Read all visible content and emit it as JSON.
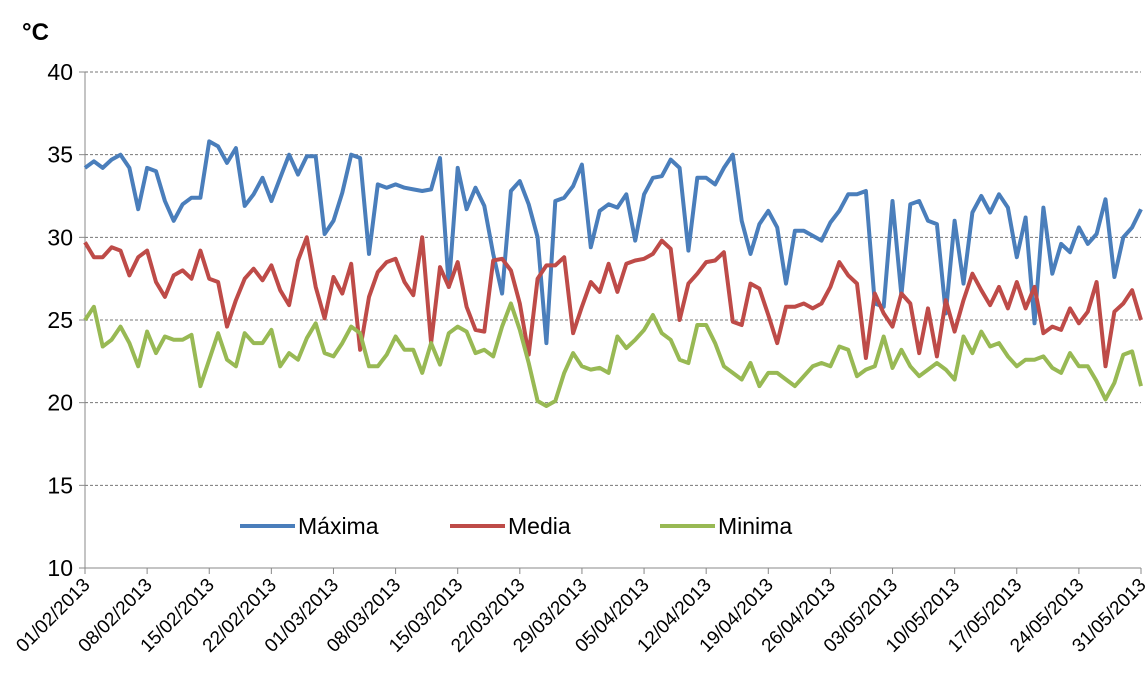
{
  "chart_data": {
    "type": "line",
    "y_label": "°C",
    "categories": [
      "01/02/2013",
      null,
      null,
      null,
      null,
      null,
      null,
      "08/02/2013",
      null,
      null,
      null,
      null,
      null,
      null,
      "15/02/2013",
      null,
      null,
      null,
      null,
      null,
      null,
      "22/02/2013",
      null,
      null,
      null,
      null,
      null,
      null,
      "01/03/2013",
      null,
      null,
      null,
      null,
      null,
      null,
      "08/03/2013",
      null,
      null,
      null,
      null,
      null,
      null,
      "15/03/2013",
      null,
      null,
      null,
      null,
      null,
      null,
      "22/03/2013",
      null,
      null,
      null,
      null,
      null,
      null,
      "29/03/2013",
      null,
      null,
      null,
      null,
      null,
      null,
      "05/04/2013",
      null,
      null,
      null,
      null,
      null,
      null,
      "12/04/2013",
      null,
      null,
      null,
      null,
      null,
      null,
      "19/04/2013",
      null,
      null,
      null,
      null,
      null,
      null,
      "26/04/2013",
      null,
      null,
      null,
      null,
      null,
      null,
      "03/05/2013",
      null,
      null,
      null,
      null,
      null,
      null,
      "10/05/2013",
      null,
      null,
      null,
      null,
      null,
      null,
      "17/05/2013",
      null,
      null,
      null,
      null,
      null,
      null,
      "24/05/2013",
      null,
      null,
      null,
      null,
      null,
      null,
      "31/05/2013"
    ],
    "series": [
      {
        "name": "Máxima",
        "color": "#4a7ebb",
        "values": [
          34.2,
          34.6,
          34.2,
          34.7,
          35.0,
          34.2,
          31.7,
          34.2,
          34.0,
          32.2,
          31.0,
          32.0,
          32.4,
          32.4,
          35.8,
          35.5,
          34.5,
          35.4,
          31.9,
          32.6,
          33.6,
          32.2,
          33.6,
          35.0,
          33.8,
          34.9,
          34.9,
          30.2,
          31.0,
          32.7,
          35.0,
          34.8,
          29.0,
          33.2,
          33.0,
          33.2,
          33.0,
          32.9,
          32.8,
          32.9,
          34.8,
          27.0,
          34.2,
          31.7,
          33.0,
          31.9,
          29.0,
          26.6,
          32.8,
          33.4,
          32.0,
          30.0,
          23.6,
          32.2,
          32.4,
          33.1,
          34.4,
          29.4,
          31.6,
          32.0,
          31.8,
          32.6,
          29.8,
          32.6,
          33.6,
          33.7,
          34.7,
          34.2,
          29.2,
          33.6,
          33.6,
          33.2,
          34.2,
          35.0,
          31.0,
          29.0,
          30.8,
          31.6,
          30.6,
          27.2,
          30.4,
          30.4,
          30.1,
          29.8,
          30.9,
          31.6,
          32.6,
          32.6,
          32.8,
          26.0,
          25.8,
          32.2,
          26.5,
          32.0,
          32.2,
          31.0,
          30.8,
          25.4,
          31.0,
          27.2,
          31.5,
          32.5,
          31.5,
          32.6,
          31.8,
          28.8,
          31.2,
          24.8,
          31.8,
          27.8,
          29.6,
          29.1,
          30.6,
          29.6,
          30.2,
          32.3,
          27.6,
          30.0,
          30.6,
          31.7
        ]
      },
      {
        "name": "Media",
        "color": "#be4b48",
        "values": [
          29.7,
          28.8,
          28.8,
          29.4,
          29.2,
          27.7,
          28.8,
          29.2,
          27.3,
          26.4,
          27.7,
          28.0,
          27.5,
          29.2,
          27.5,
          27.3,
          24.6,
          26.2,
          27.5,
          28.1,
          27.4,
          28.3,
          26.8,
          25.9,
          28.6,
          30.0,
          27.0,
          25.1,
          27.6,
          26.6,
          28.4,
          23.2,
          26.4,
          27.9,
          28.5,
          28.7,
          27.3,
          26.5,
          30.0,
          23.6,
          28.2,
          27.0,
          28.5,
          25.8,
          24.4,
          24.3,
          28.6,
          28.7,
          28.0,
          26.0,
          22.9,
          27.5,
          28.3,
          28.3,
          28.8,
          24.2,
          25.8,
          27.3,
          26.7,
          28.4,
          26.7,
          28.4,
          28.6,
          28.7,
          29.0,
          29.8,
          29.3,
          25.0,
          27.2,
          27.8,
          28.5,
          28.6,
          29.1,
          24.9,
          24.7,
          27.2,
          26.9,
          25.3,
          23.6,
          25.8,
          25.8,
          26.0,
          25.7,
          26.0,
          27.0,
          28.5,
          27.7,
          27.2,
          22.7,
          26.6,
          25.4,
          24.6,
          26.6,
          26.0,
          23.0,
          25.7,
          22.8,
          26.2,
          24.3,
          26.2,
          27.8,
          26.8,
          25.9,
          27.0,
          25.7,
          27.3,
          25.7,
          27.0,
          24.2,
          24.6,
          24.4,
          25.7,
          24.8,
          25.5,
          27.3,
          22.2,
          25.5,
          26.0,
          26.8,
          25.0
        ]
      },
      {
        "name": "Minima",
        "color": "#98b954",
        "values": [
          25.0,
          25.8,
          23.4,
          23.8,
          24.6,
          23.6,
          22.2,
          24.3,
          23.0,
          24.0,
          23.8,
          23.8,
          24.1,
          21.0,
          22.6,
          24.2,
          22.6,
          22.2,
          24.2,
          23.6,
          23.6,
          24.4,
          22.2,
          23.0,
          22.6,
          23.9,
          24.8,
          23.0,
          22.8,
          23.6,
          24.6,
          24.2,
          22.2,
          22.2,
          22.9,
          24.0,
          23.2,
          23.2,
          21.8,
          23.6,
          22.3,
          24.2,
          24.6,
          24.3,
          23.0,
          23.2,
          22.8,
          24.6,
          26.0,
          24.4,
          22.4,
          20.1,
          19.8,
          20.1,
          21.8,
          23.0,
          22.2,
          22.0,
          22.1,
          21.8,
          24.0,
          23.3,
          23.8,
          24.4,
          25.3,
          24.2,
          23.8,
          22.6,
          22.4,
          24.7,
          24.7,
          23.6,
          22.2,
          21.8,
          21.4,
          22.4,
          21.0,
          21.8,
          21.8,
          21.4,
          21.0,
          21.6,
          22.2,
          22.4,
          22.2,
          23.4,
          23.2,
          21.6,
          22.0,
          22.2,
          24.0,
          22.1,
          23.2,
          22.2,
          21.6,
          22.0,
          22.4,
          22.0,
          21.4,
          24.0,
          23.0,
          24.3,
          23.4,
          23.6,
          22.8,
          22.2,
          22.6,
          22.6,
          22.8,
          22.1,
          21.8,
          23.0,
          22.2,
          22.2,
          21.3,
          20.2,
          21.2,
          22.9,
          23.1,
          21.0
        ]
      }
    ],
    "ylim": [
      10,
      40
    ],
    "yticks": [
      10,
      15,
      20,
      25,
      30,
      35,
      40
    ],
    "grid": true,
    "legend": "lower-left"
  }
}
